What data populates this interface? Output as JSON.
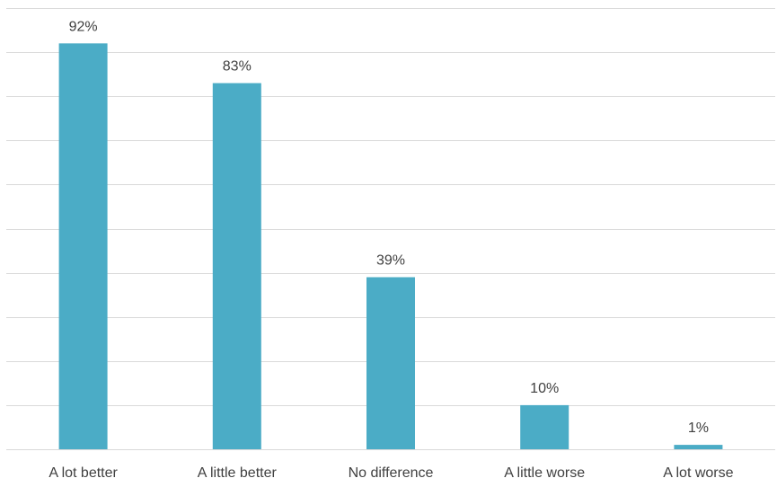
{
  "chart_data": {
    "type": "bar",
    "categories": [
      "A lot better",
      "A little better",
      "No difference",
      "A little worse",
      "A lot worse"
    ],
    "values": [
      92,
      83,
      39,
      10,
      1
    ],
    "data_labels": [
      "92%",
      "83%",
      "39%",
      "10%",
      "1%"
    ],
    "title": "",
    "xlabel": "",
    "ylabel": "",
    "ylim": [
      0,
      100
    ],
    "y_grid_step": 10,
    "grid": true,
    "legend": "none",
    "bar_color": "#4bacc6",
    "grid_color": "#d9d9d9",
    "text_color": "#404040"
  }
}
